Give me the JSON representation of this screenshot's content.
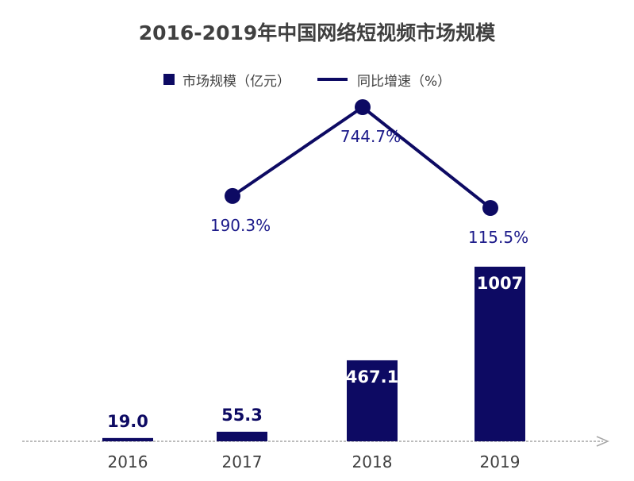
{
  "chart_data": {
    "type": "bar",
    "title": "2016-2019年中国网络短视频市场规模",
    "categories": [
      "2016",
      "2017",
      "2018",
      "2019"
    ],
    "series": [
      {
        "name": "市场规模（亿元）",
        "kind": "bar",
        "values": [
          19.0,
          55.3,
          467.1,
          1007
        ],
        "labels": [
          "19.0",
          "55.3",
          "467.1",
          "1007"
        ]
      },
      {
        "name": "同比增速（%）",
        "kind": "line",
        "values": [
          null,
          190.3,
          744.7,
          115.5
        ],
        "labels": [
          "",
          "190.3%",
          "744.7%",
          "115.5%"
        ]
      }
    ],
    "legend_position": "top",
    "grid": false
  },
  "colors": {
    "bar": "#0d0a63",
    "line": "#0d0a63",
    "line_label": "#1d1b8a",
    "axis": "#a6a6a6",
    "title": "#404040",
    "tick_label": "#404040"
  }
}
